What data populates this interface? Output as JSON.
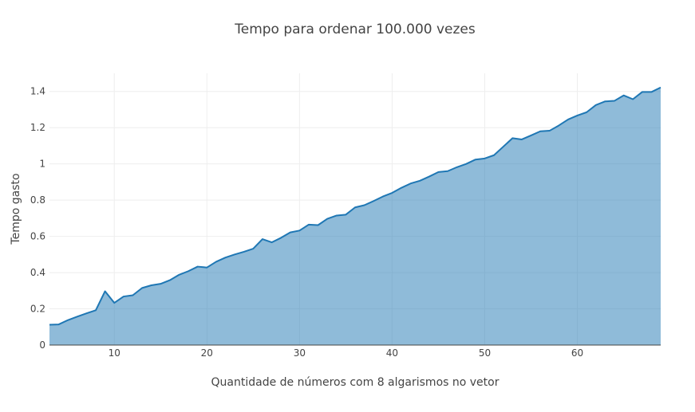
{
  "chart_data": {
    "type": "area",
    "title": "Tempo para ordenar 100.000 vezes",
    "xlabel": "Quantidade de números com 8 algarismos no vetor",
    "ylabel": "Tempo gasto",
    "xlim": [
      3,
      69
    ],
    "ylim": [
      0,
      1.5
    ],
    "xticks": [
      10,
      20,
      30,
      40,
      50,
      60
    ],
    "yticks": [
      0,
      0.2,
      0.4,
      0.6,
      0.8,
      1,
      1.2,
      1.4
    ],
    "ytick_labels": [
      "0",
      "0.2",
      "0.4",
      "0.6",
      "0.8",
      "1",
      "1.2",
      "1.4"
    ],
    "grid": true,
    "color": "#1f77b4",
    "series": [
      {
        "x": [
          3,
          4,
          5,
          6,
          7,
          8,
          9,
          10,
          11,
          12,
          13,
          14,
          15,
          16,
          17,
          18,
          19,
          20,
          21,
          22,
          23,
          24,
          25,
          26,
          27,
          28,
          29,
          30,
          31,
          32,
          33,
          34,
          35,
          36,
          37,
          38,
          39,
          40,
          41,
          42,
          43,
          44,
          45,
          46,
          47,
          48,
          49,
          50,
          51,
          52,
          53,
          54,
          55,
          56,
          57,
          58,
          59,
          60,
          61,
          62,
          63,
          64,
          65,
          66,
          67,
          68,
          69
        ],
        "y": [
          0.112,
          0.114,
          0.138,
          0.157,
          0.175,
          0.192,
          0.297,
          0.233,
          0.268,
          0.275,
          0.315,
          0.33,
          0.338,
          0.358,
          0.388,
          0.408,
          0.433,
          0.428,
          0.46,
          0.483,
          0.5,
          0.515,
          0.532,
          0.585,
          0.567,
          0.592,
          0.622,
          0.632,
          0.665,
          0.662,
          0.697,
          0.715,
          0.72,
          0.76,
          0.772,
          0.795,
          0.82,
          0.84,
          0.868,
          0.892,
          0.907,
          0.93,
          0.955,
          0.96,
          0.982,
          1.0,
          1.024,
          1.03,
          1.048,
          1.095,
          1.142,
          1.135,
          1.157,
          1.18,
          1.183,
          1.212,
          1.245,
          1.267,
          1.285,
          1.325,
          1.345,
          1.348,
          1.378,
          1.357,
          1.397,
          1.397,
          1.422
        ]
      }
    ]
  }
}
